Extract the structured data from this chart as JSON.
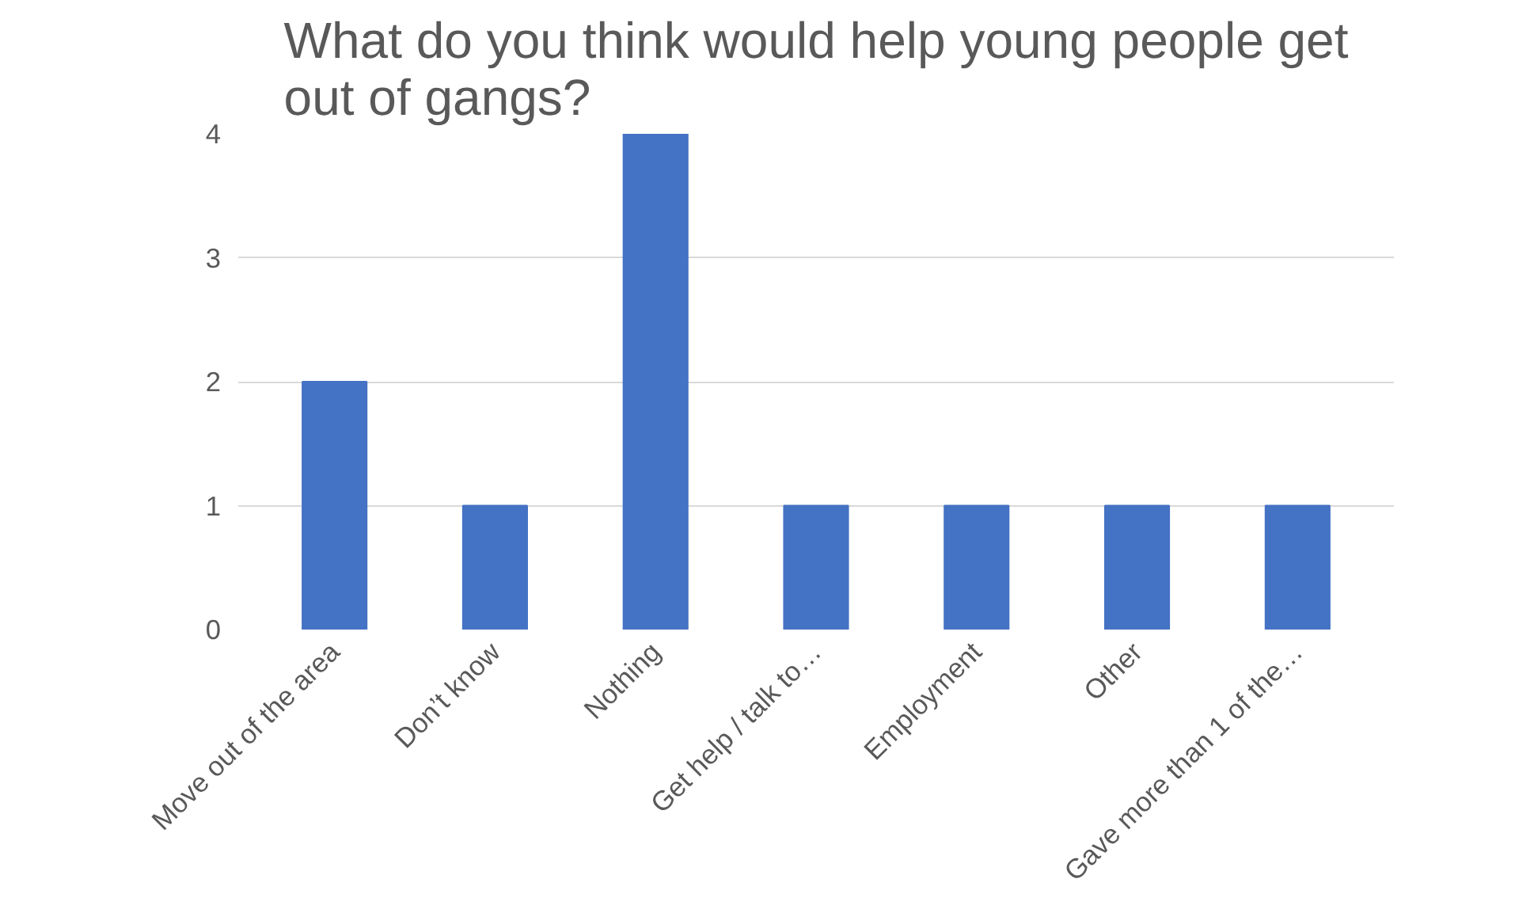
{
  "chart_data": {
    "type": "bar",
    "title": "What do you think would help young people get out of gangs?",
    "categories": [
      "Move out of the area",
      "Don’t know",
      "Nothing",
      "Get help / talk to…",
      "Employment",
      "Other",
      "Gave more than 1 of the…"
    ],
    "values": [
      2,
      1,
      4,
      1,
      1,
      1,
      1
    ],
    "color": "#4472c4",
    "ylim": [
      0,
      4
    ],
    "yticks": [
      0,
      1,
      2,
      3,
      4
    ],
    "grid": "y"
  }
}
